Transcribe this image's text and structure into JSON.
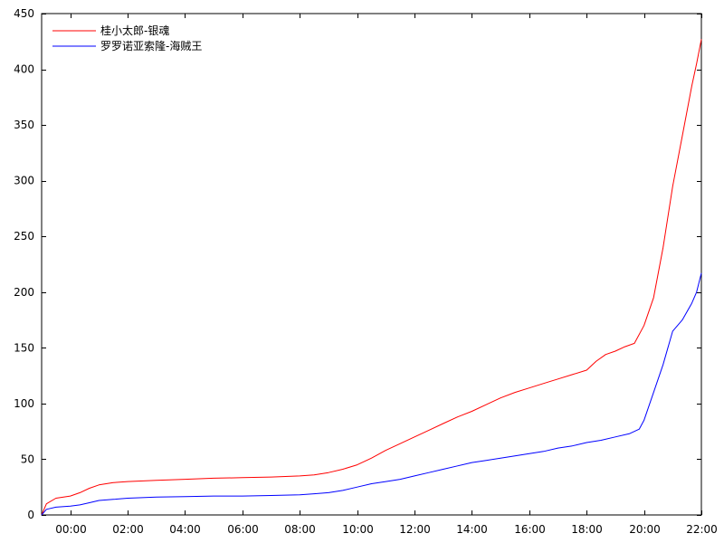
{
  "chart_data": {
    "type": "line",
    "title": "",
    "xlabel": "",
    "ylabel": "",
    "grid": false,
    "legend_position": "top-left",
    "xlim": [
      "-1:00",
      "22:00"
    ],
    "ylim": [
      0,
      450
    ],
    "x_ticks": [
      "00:00",
      "02:00",
      "04:00",
      "06:00",
      "08:00",
      "10:00",
      "12:00",
      "14:00",
      "16:00",
      "18:00",
      "20:00",
      "22:00"
    ],
    "y_ticks": [
      0,
      50,
      100,
      150,
      200,
      250,
      300,
      350,
      400,
      450
    ],
    "series": [
      {
        "name": "桂小太郎-银魂",
        "color": "#ff0000",
        "points": [
          [
            "-1:00",
            0
          ],
          [
            "-0:50",
            10
          ],
          [
            "-0:30",
            15
          ],
          [
            "0:00",
            17
          ],
          [
            "0:20",
            20
          ],
          [
            "0:40",
            24
          ],
          [
            "1:00",
            27
          ],
          [
            "1:30",
            29
          ],
          [
            "2:00",
            30
          ],
          [
            "3:00",
            31
          ],
          [
            "4:00",
            32
          ],
          [
            "5:00",
            33
          ],
          [
            "6:00",
            33.5
          ],
          [
            "7:00",
            34
          ],
          [
            "8:00",
            35
          ],
          [
            "8:30",
            36
          ],
          [
            "9:00",
            38
          ],
          [
            "9:30",
            41
          ],
          [
            "10:00",
            45
          ],
          [
            "10:30",
            51
          ],
          [
            "11:00",
            58
          ],
          [
            "11:30",
            64
          ],
          [
            "12:00",
            70
          ],
          [
            "12:30",
            76
          ],
          [
            "13:00",
            82
          ],
          [
            "13:30",
            88
          ],
          [
            "14:00",
            93
          ],
          [
            "14:30",
            99
          ],
          [
            "15:00",
            105
          ],
          [
            "15:30",
            110
          ],
          [
            "16:00",
            114
          ],
          [
            "16:30",
            118
          ],
          [
            "17:00",
            122
          ],
          [
            "17:30",
            126
          ],
          [
            "18:00",
            130
          ],
          [
            "18:20",
            138
          ],
          [
            "18:40",
            144
          ],
          [
            "19:00",
            147
          ],
          [
            "19:20",
            151
          ],
          [
            "19:40",
            154
          ],
          [
            "20:00",
            170
          ],
          [
            "20:20",
            195
          ],
          [
            "20:40",
            240
          ],
          [
            "21:00",
            295
          ],
          [
            "21:20",
            340
          ],
          [
            "21:40",
            385
          ],
          [
            "21:50",
            405
          ],
          [
            "22:00",
            427
          ]
        ]
      },
      {
        "name": "罗罗诺亚索隆-海贼王",
        "color": "#0000ff",
        "points": [
          [
            "-1:00",
            0
          ],
          [
            "-0:50",
            5
          ],
          [
            "-0:30",
            7
          ],
          [
            "0:00",
            8
          ],
          [
            "0:20",
            9
          ],
          [
            "0:40",
            11
          ],
          [
            "1:00",
            13
          ],
          [
            "1:30",
            14
          ],
          [
            "2:00",
            15
          ],
          [
            "3:00",
            16
          ],
          [
            "4:00",
            16.5
          ],
          [
            "5:00",
            17
          ],
          [
            "6:00",
            17
          ],
          [
            "7:00",
            17.5
          ],
          [
            "8:00",
            18
          ],
          [
            "8:30",
            19
          ],
          [
            "9:00",
            20
          ],
          [
            "9:30",
            22
          ],
          [
            "10:00",
            25
          ],
          [
            "10:30",
            28
          ],
          [
            "11:00",
            30
          ],
          [
            "11:30",
            32
          ],
          [
            "12:00",
            35
          ],
          [
            "12:30",
            38
          ],
          [
            "13:00",
            41
          ],
          [
            "13:30",
            44
          ],
          [
            "14:00",
            47
          ],
          [
            "14:30",
            49
          ],
          [
            "15:00",
            51
          ],
          [
            "15:30",
            53
          ],
          [
            "16:00",
            55
          ],
          [
            "16:30",
            57
          ],
          [
            "17:00",
            60
          ],
          [
            "17:30",
            62
          ],
          [
            "18:00",
            65
          ],
          [
            "18:30",
            67
          ],
          [
            "19:00",
            70
          ],
          [
            "19:30",
            73
          ],
          [
            "19:50",
            77
          ],
          [
            "20:00",
            85
          ],
          [
            "20:20",
            110
          ],
          [
            "20:40",
            135
          ],
          [
            "20:50",
            150
          ],
          [
            "21:00",
            165
          ],
          [
            "21:20",
            175
          ],
          [
            "21:40",
            190
          ],
          [
            "21:50",
            200
          ],
          [
            "22:00",
            217
          ]
        ]
      }
    ]
  }
}
